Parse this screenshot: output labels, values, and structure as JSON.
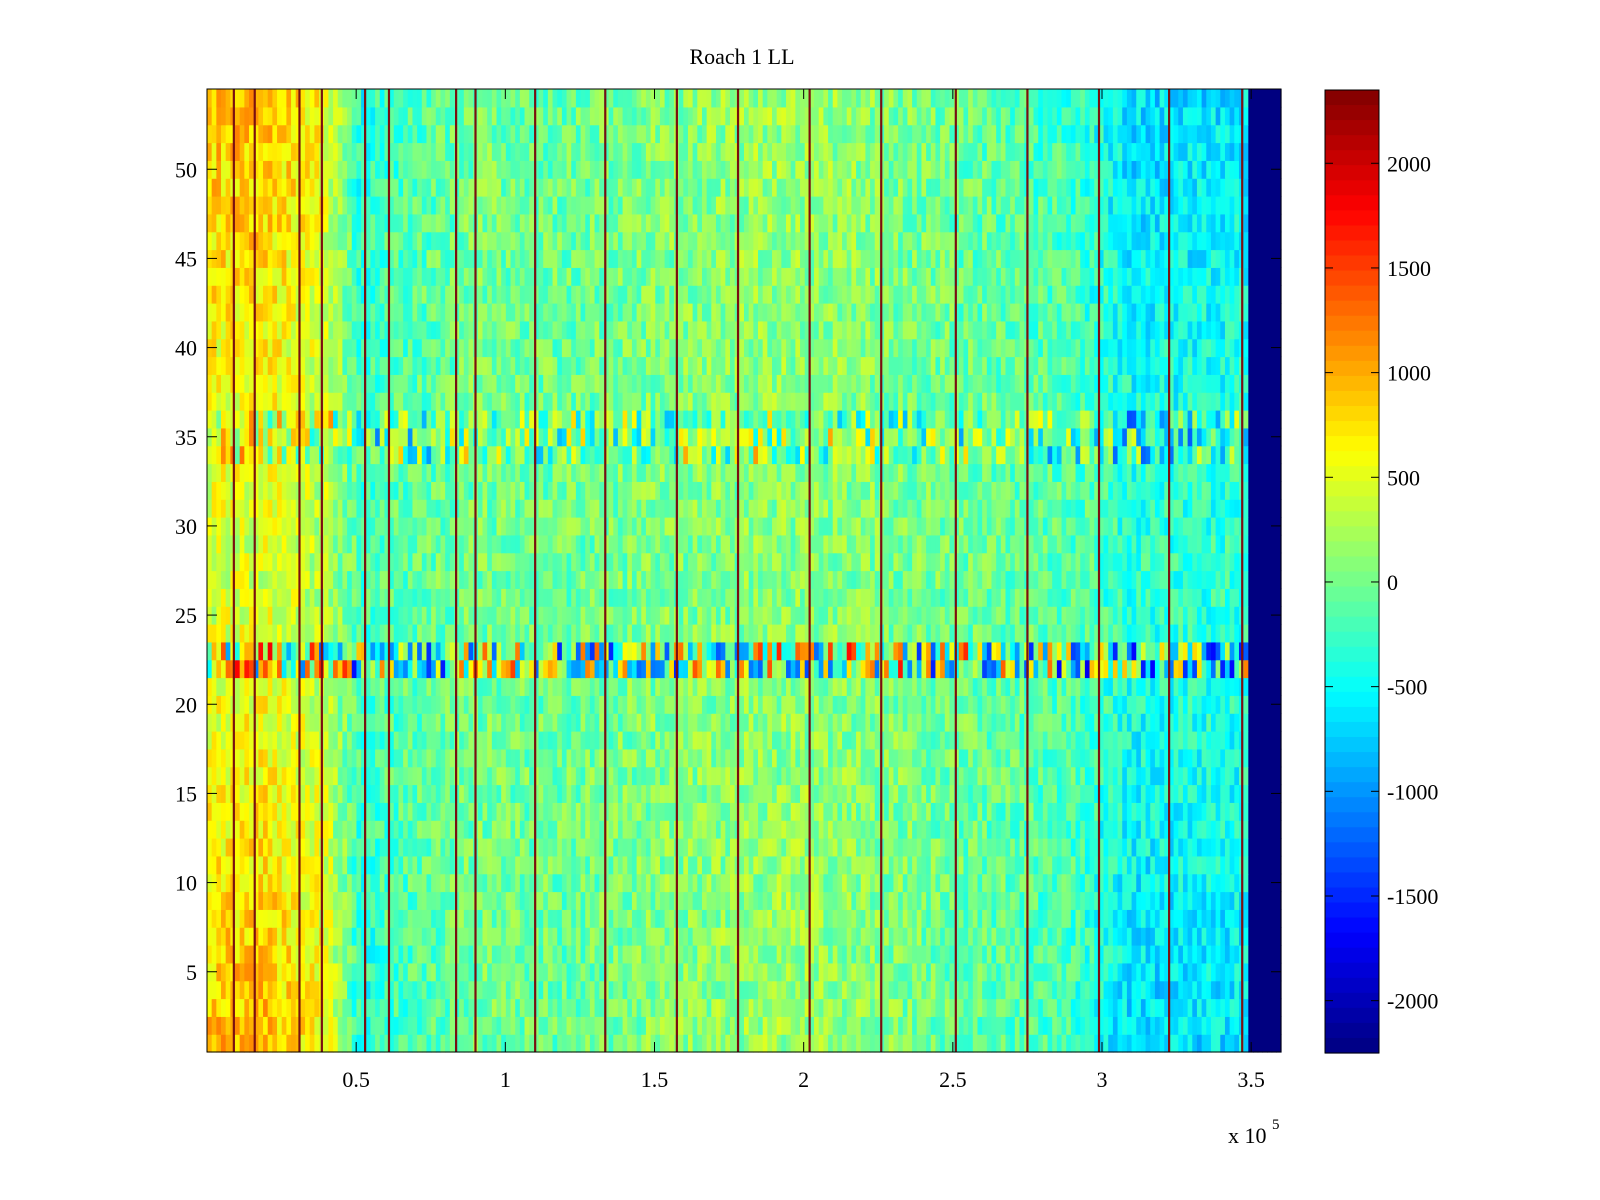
{
  "chart_data": {
    "type": "heatmap",
    "title": "Roach 1 LL",
    "xlabel": "",
    "ylabel": "",
    "x_exponent_label": "x 10",
    "x_exponent_power": "5",
    "xlim": [
      0,
      3.6
    ],
    "ylim": [
      0.5,
      54.5
    ],
    "x_ticks": [
      0.5,
      1,
      1.5,
      2,
      2.5,
      3,
      3.5
    ],
    "x_tick_labels": [
      "0.5",
      "1",
      "1.5",
      "2",
      "2.5",
      "3",
      "3.5"
    ],
    "y_ticks": [
      5,
      10,
      15,
      20,
      25,
      30,
      35,
      40,
      45,
      50
    ],
    "y_tick_labels": [
      "5",
      "10",
      "15",
      "20",
      "25",
      "30",
      "35",
      "40",
      "45",
      "50"
    ],
    "colormap": "jet",
    "clim": [
      -2250,
      2350
    ],
    "colorbar_ticks": [
      2000,
      1500,
      1000,
      500,
      0,
      -500,
      -1000,
      -1500,
      -2000
    ],
    "colorbar_tick_labels": [
      "2000",
      "1500",
      "1000",
      "500",
      "0",
      "-500",
      "-1000",
      "-1500",
      "-2000"
    ],
    "rows": 54,
    "data_end_x": 3.49,
    "fill_value_after_end": -2250,
    "baseline_profile": [
      {
        "x": 0.0,
        "value": 700
      },
      {
        "x": 0.2,
        "value": 750
      },
      {
        "x": 0.4,
        "value": 450
      },
      {
        "x": 0.52,
        "value": -350
      },
      {
        "x": 0.6,
        "value": -200
      },
      {
        "x": 0.9,
        "value": 0
      },
      {
        "x": 1.2,
        "value": -50
      },
      {
        "x": 1.5,
        "value": 50
      },
      {
        "x": 2.0,
        "value": 150
      },
      {
        "x": 2.4,
        "value": 0
      },
      {
        "x": 2.9,
        "value": -200
      },
      {
        "x": 3.1,
        "value": -550
      },
      {
        "x": 3.45,
        "value": -500
      }
    ],
    "bands": [
      {
        "row_from": 22,
        "row_to": 23,
        "description": "strong alternating spikes"
      },
      {
        "row_from": 34,
        "row_to": 36,
        "description": "weaker alternating spikes"
      }
    ],
    "vertical_lines_x": [
      0.09,
      0.16,
      0.31,
      0.385,
      0.53,
      0.61,
      0.835,
      0.9,
      1.1,
      1.335,
      1.575,
      1.78,
      2.02,
      2.26,
      2.51,
      2.75,
      2.99,
      3.225,
      3.47
    ]
  }
}
